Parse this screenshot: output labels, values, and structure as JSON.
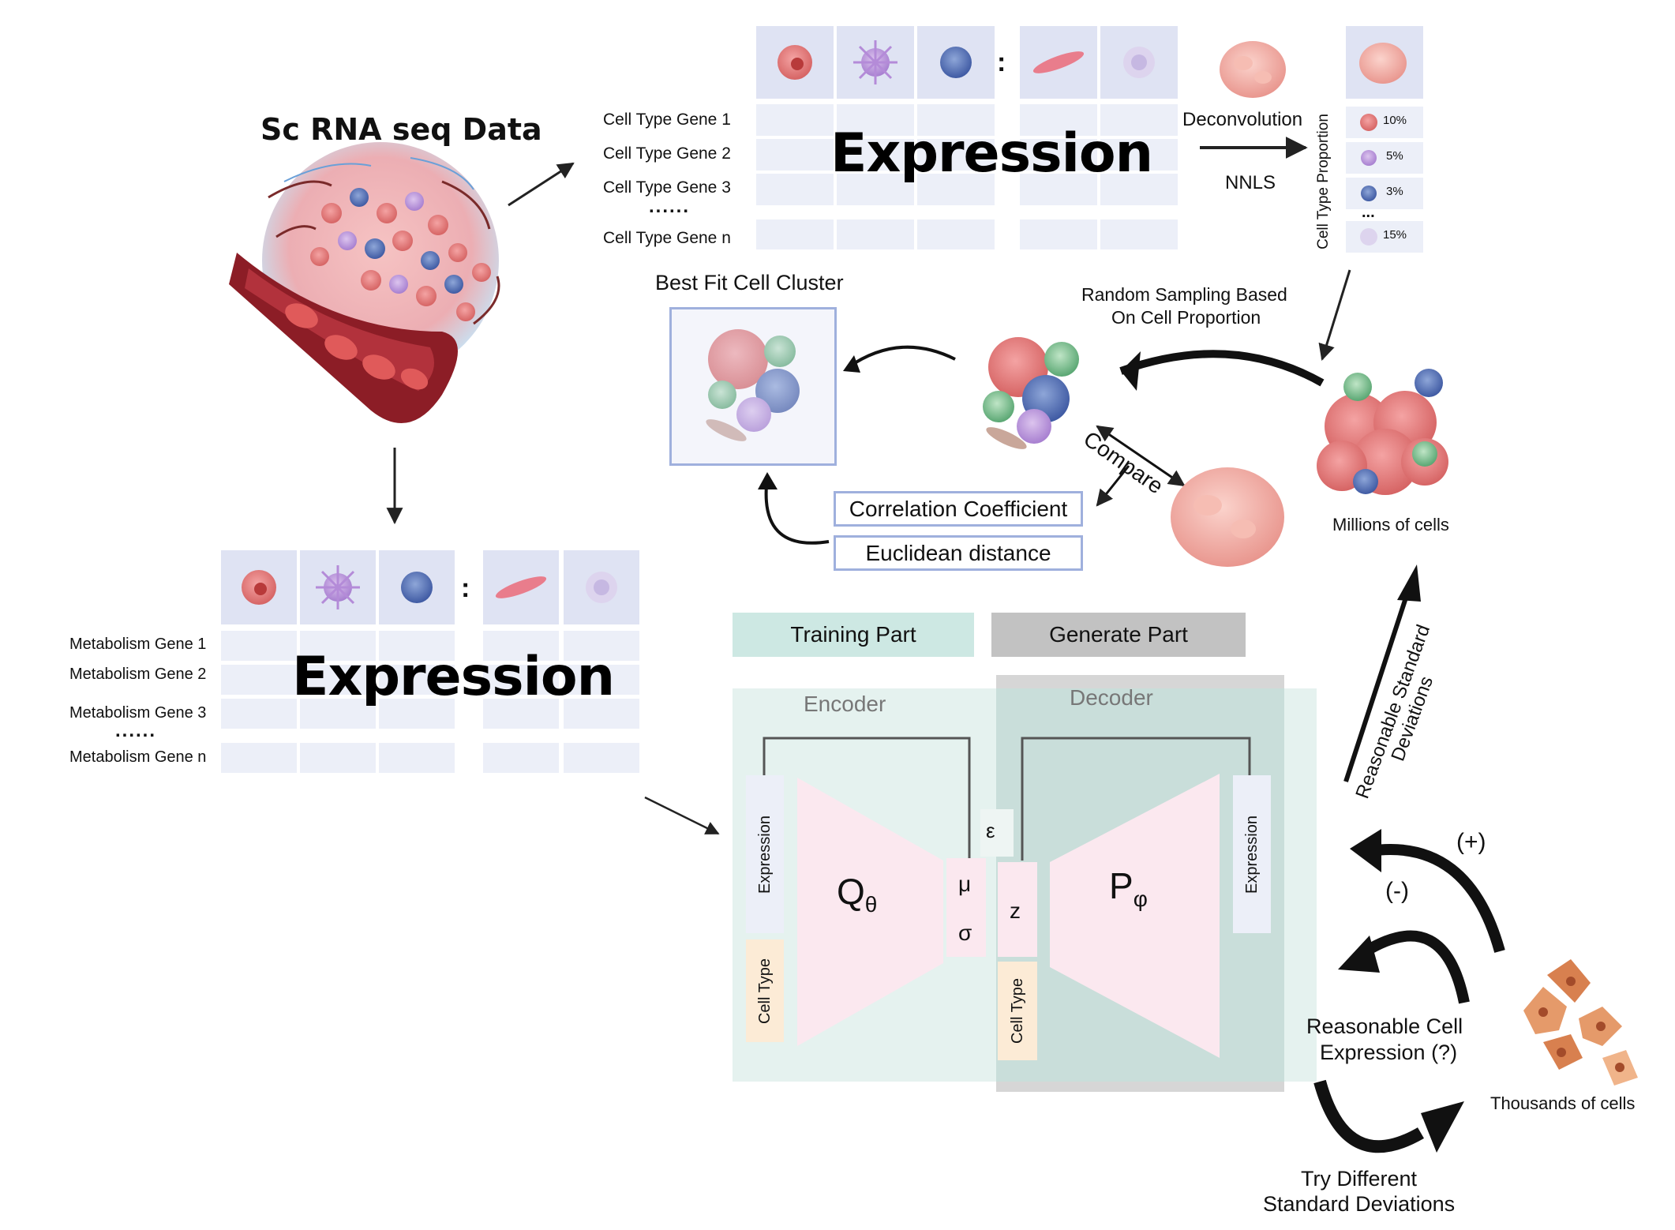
{
  "sc": {
    "title": "Sc RNA seq Data"
  },
  "top_matrix": {
    "rows": [
      "Cell Type Gene 1",
      "Cell Type Gene 2",
      "Cell Type Gene 3",
      "Cell Type Gene n"
    ],
    "dots": "......",
    "colon": ":",
    "expression": "Expression"
  },
  "deconv": {
    "label": "Deconvolution",
    "method": "NNLS"
  },
  "proportion": {
    "axis_label": "Cell Type Proportion",
    "items": [
      "10%",
      "5%",
      "3%",
      "15%"
    ],
    "ellipsis": "..."
  },
  "best_fit": {
    "label": "Best Fit Cell Cluster"
  },
  "sampling": {
    "line1": "Random Sampling Based",
    "line2": "On Cell Proportion"
  },
  "compare": {
    "label": "Compare"
  },
  "metrics": {
    "corr": "Correlation Coefficient",
    "euclid": "Euclidean distance"
  },
  "millions": {
    "label": "Millions of cells"
  },
  "meta_matrix": {
    "rows": [
      "Metabolism Gene 1",
      "Metabolism Gene 2",
      "Metabolism Gene 3",
      "Metabolism Gene n"
    ],
    "dots": "......",
    "colon": ":",
    "expression": "Expression"
  },
  "parts": {
    "training": "Training Part",
    "generate": "Generate Part"
  },
  "vae": {
    "encoder": "Encoder",
    "decoder": "Decoder",
    "q": "Q",
    "q_sub": "θ",
    "p": "P",
    "p_sub": "φ",
    "eps": "ε",
    "mu": "μ",
    "sigma": "σ",
    "z": "z",
    "expression": "Expression",
    "cell_type": "Cell Type"
  },
  "right_loop": {
    "std_dev": "Reasonable Standard Deviations",
    "plus": "(+)",
    "minus": "(-)",
    "reasonable_line1": "Reasonable Cell",
    "reasonable_line2": "Expression (?)",
    "thousands": "Thousands of cells",
    "try_line1": "Try Different",
    "try_line2": "Standard Deviations"
  },
  "colors": {
    "header_cell": "#dfe3f3",
    "matrix_cell": "#eceff8",
    "training": "#cde8e3",
    "generate": "#c2c2c2",
    "encoder_bg": "#e6f3f0",
    "trapezoid": "#fbe8ef",
    "cell_type_box": "#fcebd6",
    "box_border": "#9fb0dd"
  }
}
